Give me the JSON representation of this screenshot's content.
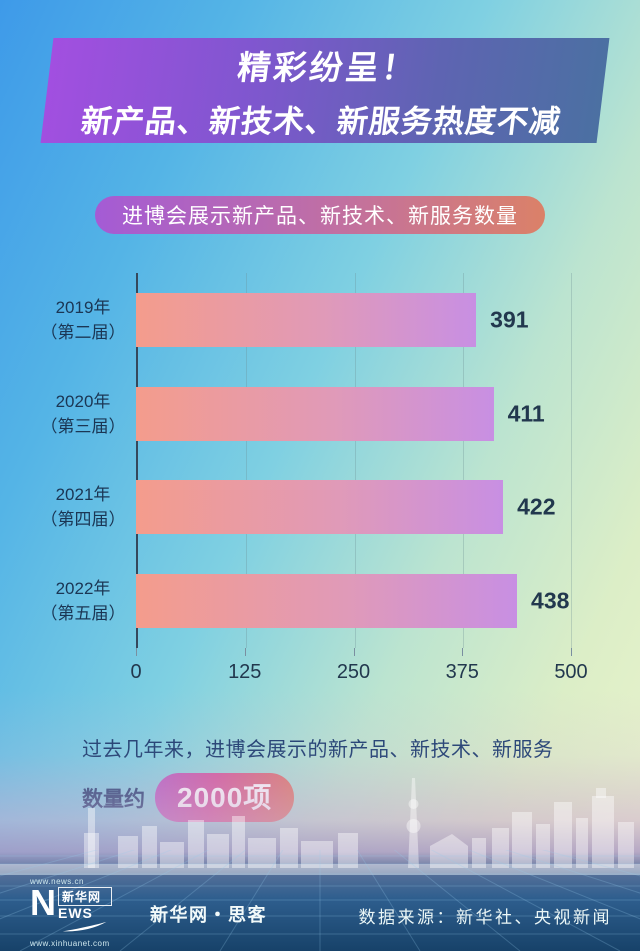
{
  "banner": {
    "line1": "精彩纷呈！",
    "line2": "新产品、新技术、新服务热度不减"
  },
  "chart_data": {
    "type": "bar",
    "orientation": "horizontal",
    "title": "进博会展示新产品、新技术、新服务数量",
    "categories": [
      {
        "year": "2019年",
        "session": "（第二届）"
      },
      {
        "year": "2020年",
        "session": "（第三届）"
      },
      {
        "year": "2021年",
        "session": "（第四届）"
      },
      {
        "year": "2022年",
        "session": "（第五届）"
      }
    ],
    "values": [
      391,
      411,
      422,
      438
    ],
    "xlim": [
      0,
      500
    ],
    "x_ticks": [
      0,
      125,
      250,
      375,
      500
    ],
    "grid": true,
    "legend": false,
    "bar_colors": [
      "#F49C8C",
      "#E09AB8",
      "#C88FE3"
    ]
  },
  "note": {
    "line1": "过去几年来，进博会展示的新产品、新技术、新服务",
    "prefix": "数量约",
    "highlight": "2000项"
  },
  "footer": {
    "url_top": "www.news.cn",
    "logo_n": "N",
    "logo_cn": "新华网",
    "logo_ews": "EWS",
    "url_bottom": "www.xinhuanet.com",
    "brand": "新华网・思客",
    "source": "数据来源：新华社、央视新闻"
  },
  "colors": {
    "banner_gradient": [
      "#A24FE0",
      "#4B70A2"
    ],
    "title_pill_gradient": [
      "#A45BD5",
      "#DB8168"
    ],
    "highlight_pill_gradient": [
      "#B55CC4",
      "#D4549A",
      "#DE7A60"
    ],
    "background_top_left": "#3E9AE9",
    "background_top_right": "#EDF5CE",
    "footer_bottom": "#174269",
    "text_dark": "#1B3654",
    "text_light": "#FFFFFF"
  }
}
